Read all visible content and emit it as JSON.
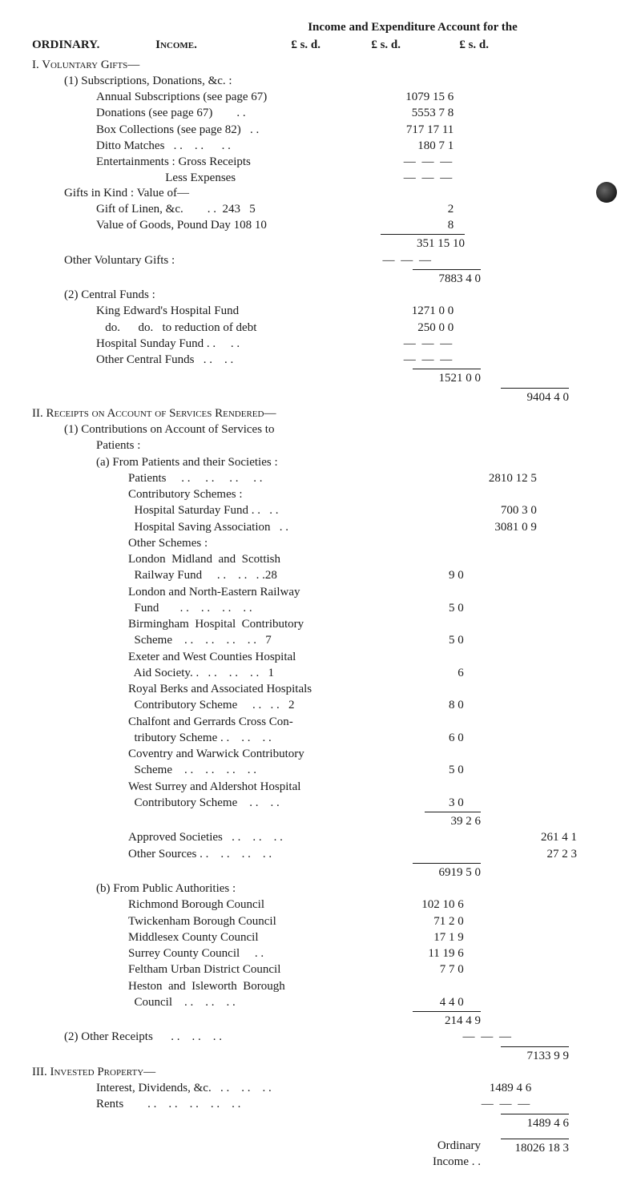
{
  "header": {
    "title_center": "Income and Expenditure Account for the",
    "ordinary": "ORDINARY.",
    "income_label": "Income.",
    "lsd1": "£   s.  d.",
    "lsd2": "£   s.  d.",
    "lsd3": "£   s.  d."
  },
  "section1": {
    "heading": "I.  Voluntary Gifts—",
    "sub1": "(1) Subscriptions, Donations, &c. :",
    "rows": [
      {
        "label": "Annual Subscriptions (see page 67)",
        "amt1": "1079 15  6"
      },
      {
        "label": "Donations (see page 67)        . .",
        "amt1": "5553  7  8"
      },
      {
        "label": "Box Collections (see page 82)   . .",
        "amt1": "717 17 11"
      },
      {
        "label": "Ditto Matches   . .    . .      . .",
        "amt1": "180  7  1"
      },
      {
        "label": "Entertainments : Gross Receipts",
        "amt1": "—  —  —"
      },
      {
        "label": "                       Less Expenses",
        "amt1": "—  —  —"
      }
    ],
    "gifts_in_kind": "Gifts in Kind : Value of—",
    "gik_rows": [
      {
        "label": "Gift of Linen, &c.        . .  243   5",
        "tail": "2"
      },
      {
        "label": "Value of Goods, Pound Day 108 10",
        "tail": "8"
      }
    ],
    "gik_total": "351 15 10",
    "other_vol": "Other Voluntary Gifts :",
    "other_vol_amt1": "—  —  —",
    "other_vol_total2": "7883  4  0",
    "central_heading": "(2) Central Funds :",
    "central_rows": [
      {
        "label": "King Edward's Hospital Fund",
        "amt1": "1271  0  0"
      },
      {
        "label": "   do.      do.   to reduction of debt",
        "amt1": "250  0  0"
      },
      {
        "label": "Hospital Sunday Fund . .     . .",
        "amt1": "—  —  —"
      },
      {
        "label": "Other Central Funds   . .    . .",
        "amt1": "—  —  —"
      }
    ],
    "central_total2": "1521  0  0",
    "grand_total3": "9404  4  0"
  },
  "section2": {
    "heading": "II.  Receipts on Account of Services Rendered—",
    "sub1": "(1) Contributions on Account of Services to",
    "sub1b": "Patients :",
    "a_heading": "(a) From Patients and their Societies :",
    "a_rows": [
      {
        "label": "Patients     . .     . .     . .     . .",
        "amt2": "2810 12  5"
      },
      {
        "label": "Contributory Schemes :",
        "amt2": ""
      },
      {
        "label": "  Hospital Saturday Fund . .   . .",
        "amt2": "700  3  0"
      },
      {
        "label": "  Hospital Saving Association   . .",
        "amt2": "3081  0  9"
      },
      {
        "label": "Other Schemes :",
        "amt2": ""
      }
    ],
    "a_sub_rows": [
      {
        "label": "London  Midland  and  Scottish",
        "amt1": ""
      },
      {
        "label": "  Railway Fund     . .    . .   . .28",
        "amt1": "9  0"
      },
      {
        "label": "London and North-Eastern Railway",
        "amt1": ""
      },
      {
        "label": "  Fund       . .    . .    . .    . .",
        "amt1": "5  0"
      },
      {
        "label": "Birmingham  Hospital  Contributory",
        "amt1": ""
      },
      {
        "label": "  Scheme    . .    . .    . .    . .   7",
        "amt1": "5  0"
      },
      {
        "label": "Exeter and West Counties Hospital",
        "amt1": ""
      },
      {
        "label": "  Aid Society. .   . .    . .    . .   1",
        "amt1": "6   "
      },
      {
        "label": "Royal Berks and Associated Hospitals",
        "amt1": ""
      },
      {
        "label": "  Contributory Scheme     . .   . .   2",
        "amt1": "8  0"
      },
      {
        "label": "Chalfont and Gerrards Cross Con-",
        "amt1": ""
      },
      {
        "label": "  tributory Scheme . .    . .    . .",
        "amt1": "6  0"
      },
      {
        "label": "Coventry and Warwick Contributory",
        "amt1": ""
      },
      {
        "label": "  Scheme    . .    . .    . .    . .",
        "amt1": "5  0"
      },
      {
        "label": "West Surrey and Aldershot Hospital",
        "amt1": ""
      },
      {
        "label": "  Contributory Scheme    . .    . .",
        "amt1": "3  0"
      }
    ],
    "a_sub_total2": "39  2  6",
    "approved": {
      "label": "Approved Societies   . .    . .    . .",
      "amt2": "261  4  1"
    },
    "other_sources": {
      "label": "Other Sources . .    . .    . .    . .",
      "amt2": "27  2  3"
    },
    "a_grand2": "6919  5  0",
    "b_heading": "(b) From Public Authorities :",
    "b_rows": [
      {
        "label": "Richmond Borough Council",
        "amt1": "102 10  6"
      },
      {
        "label": "Twickenham Borough Council",
        "amt1": "71  2  0"
      },
      {
        "label": "Middlesex County Council",
        "amt1": "17  1  9"
      },
      {
        "label": "Surrey County Council     . .",
        "amt1": "11 19  6"
      },
      {
        "label": "Feltham Urban District Council",
        "amt1": "7  7  0"
      },
      {
        "label": "Heston  and  Isleworth  Borough",
        "amt1": ""
      },
      {
        "label": "  Council    . .    . .    . .",
        "amt1": "4  4  0"
      }
    ],
    "b_total2": "214  4  9",
    "other_receipts": "(2) Other Receipts      . .    . .    . .",
    "other_receipts_amt2": "—  —  —",
    "sec2_total3": "7133  9  9"
  },
  "section3": {
    "heading": "III.  Invested Property—",
    "rows": [
      {
        "label": "Interest, Dividends, &c.   . .    . .    . .",
        "amt2": "1489  4  6"
      },
      {
        "label": "Rents        . .    . .    . .    . .    . .",
        "amt2": "—  —  —"
      }
    ],
    "total3": "1489  4  6"
  },
  "footer": {
    "label": "Ordinary Income  . .",
    "total": "18026 18  3"
  }
}
